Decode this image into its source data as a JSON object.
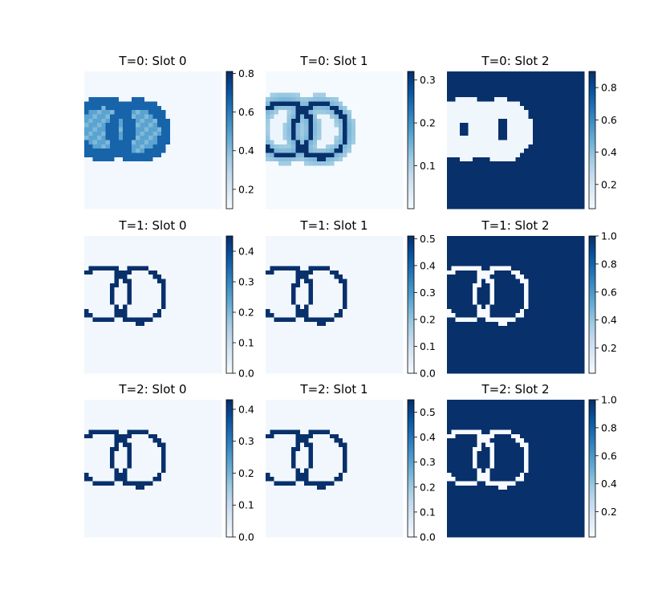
{
  "figure": {
    "colormap": "Blues",
    "background": "#ffffff"
  },
  "chart_data": [
    {
      "type": "heatmap",
      "title": "T=0: Slot 0",
      "mode": "blob",
      "stroke": 2,
      "fill": 0.55,
      "outside": 0.02,
      "ring": 0.8,
      "colorbar": {
        "range": [
          0.1,
          0.81
        ],
        "ticks": [
          0.2,
          0.4,
          0.6,
          0.8
        ],
        "tick_labels": [
          "0.2",
          "0.4",
          "0.6",
          "0.8"
        ]
      }
    },
    {
      "type": "heatmap",
      "title": "T=0: Slot 1",
      "mode": "halo",
      "stroke": 1,
      "halo": 0.35,
      "outside": 0.01,
      "ring": 1.0,
      "colorbar": {
        "range": [
          0.0,
          0.32
        ],
        "ticks": [
          0.1,
          0.2,
          0.3
        ],
        "tick_labels": [
          "0.1",
          "0.2",
          "0.3"
        ]
      }
    },
    {
      "type": "heatmap",
      "title": "T=0: Slot 2",
      "mode": "invblob",
      "stroke": 0,
      "fill": 0.04,
      "outside": 1.0,
      "ring": 0.06,
      "colorbar": {
        "range": [
          0.05,
          0.9
        ],
        "ticks": [
          0.2,
          0.4,
          0.6,
          0.8
        ],
        "tick_labels": [
          "0.2",
          "0.4",
          "0.6",
          "0.8"
        ]
      }
    },
    {
      "type": "heatmap",
      "title": "T=1: Slot 0",
      "mode": "outline",
      "stroke": 1,
      "outside": 0.03,
      "ring": 1.0,
      "colorbar": {
        "range": [
          0.0,
          0.45
        ],
        "ticks": [
          0.0,
          0.1,
          0.2,
          0.3,
          0.4
        ],
        "tick_labels": [
          "0.0",
          "0.1",
          "0.2",
          "0.3",
          "0.4"
        ]
      }
    },
    {
      "type": "heatmap",
      "title": "T=1: Slot 1",
      "mode": "outline",
      "stroke": 1,
      "outside": 0.03,
      "ring": 1.0,
      "colorbar": {
        "range": [
          0.0,
          0.51
        ],
        "ticks": [
          0.0,
          0.1,
          0.2,
          0.3,
          0.4,
          0.5
        ],
        "tick_labels": [
          "0.0",
          "0.1",
          "0.2",
          "0.3",
          "0.4",
          "0.5"
        ]
      }
    },
    {
      "type": "heatmap",
      "title": "T=1: Slot 2",
      "mode": "inverse",
      "stroke": 1,
      "outside": 1.0,
      "ring": 0.0,
      "colorbar": {
        "range": [
          0.02,
          1.0
        ],
        "ticks": [
          0.2,
          0.4,
          0.6,
          0.8,
          1.0
        ],
        "tick_labels": [
          "0.2",
          "0.4",
          "0.6",
          "0.8",
          "1.0"
        ]
      }
    },
    {
      "type": "heatmap",
      "title": "T=2: Slot 0",
      "mode": "outline",
      "stroke": 1,
      "outside": 0.03,
      "ring": 1.0,
      "colorbar": {
        "range": [
          0.0,
          0.43
        ],
        "ticks": [
          0.0,
          0.1,
          0.2,
          0.3,
          0.4
        ],
        "tick_labels": [
          "0.0",
          "0.1",
          "0.2",
          "0.3",
          "0.4"
        ]
      }
    },
    {
      "type": "heatmap",
      "title": "T=2: Slot 1",
      "mode": "outline",
      "stroke": 1,
      "outside": 0.03,
      "ring": 1.0,
      "colorbar": {
        "range": [
          0.0,
          0.55
        ],
        "ticks": [
          0.0,
          0.1,
          0.2,
          0.3,
          0.4,
          0.5
        ],
        "tick_labels": [
          "0.0",
          "0.1",
          "0.2",
          "0.3",
          "0.4",
          "0.5"
        ]
      }
    },
    {
      "type": "heatmap",
      "title": "T=2: Slot 2",
      "mode": "inverse",
      "stroke": 1,
      "outside": 1.0,
      "ring": 0.0,
      "colorbar": {
        "range": [
          0.02,
          1.0
        ],
        "ticks": [
          0.2,
          0.4,
          0.6,
          0.8,
          1.0
        ],
        "tick_labels": [
          "0.2",
          "0.4",
          "0.6",
          "0.8",
          "1.0"
        ]
      }
    }
  ]
}
